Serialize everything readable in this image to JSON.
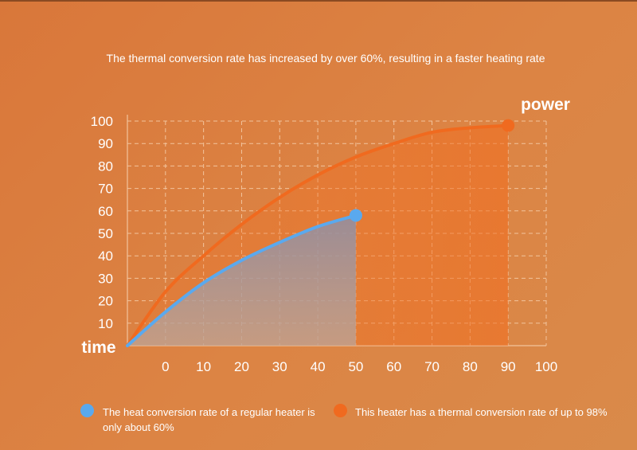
{
  "title": "The thermal conversion rate has increased by over 60%, resulting in a faster heating rate",
  "legend": [
    {
      "label": "The heat conversion rate of a regular heater is only about 60%",
      "color": "#5aa9ee"
    },
    {
      "label": "This heater has a thermal conversion rate of up to 98%",
      "color": "#f06a1f"
    }
  ],
  "chart_data": {
    "type": "area",
    "ylabel": "power",
    "xlabel": "time",
    "x_ticks": [
      0,
      10,
      20,
      30,
      40,
      50,
      60,
      70,
      80,
      90,
      100
    ],
    "y_ticks": [
      10,
      20,
      30,
      40,
      50,
      60,
      70,
      80,
      90,
      100
    ],
    "xlim": [
      -10,
      100
    ],
    "ylim": [
      0,
      100
    ],
    "grid": true,
    "series": [
      {
        "color": "#f06a1f",
        "x": [
          -10,
          0,
          10,
          20,
          30,
          40,
          50,
          60,
          70,
          80,
          90
        ],
        "y": [
          0,
          24,
          40,
          54,
          66,
          76,
          84,
          90,
          95,
          97,
          98
        ]
      },
      {
        "color": "#5aa9ee",
        "x": [
          -10,
          0,
          10,
          20,
          30,
          40,
          50
        ],
        "y": [
          0,
          15,
          28,
          38,
          46,
          53,
          58
        ]
      }
    ]
  }
}
